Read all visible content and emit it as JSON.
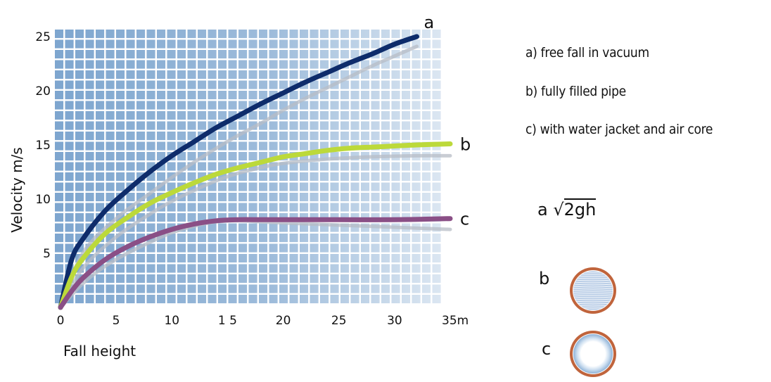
{
  "chart_data": {
    "type": "line",
    "xlabel": "Fall height",
    "ylabel": "Velocity  m/s",
    "xlim": [
      0,
      35
    ],
    "ylim": [
      0,
      26
    ],
    "x_ticks": [
      0,
      5,
      10,
      15,
      20,
      25,
      30,
      35
    ],
    "x_tick_labels": [
      "0",
      "5",
      "10",
      "1 5",
      "20",
      "25",
      "30",
      "35m"
    ],
    "y_ticks": [
      5,
      10,
      15,
      20,
      25
    ],
    "y_tick_labels": [
      "5",
      "10",
      "15",
      "20",
      "25"
    ],
    "grid": true,
    "series": [
      {
        "name": "a",
        "color": "#0e2c6b",
        "x": [
          0,
          1,
          2,
          4,
          6,
          8,
          10,
          12,
          14,
          16,
          18,
          20,
          22,
          24,
          26,
          28,
          30,
          32
        ],
        "y": [
          0,
          4.4,
          6.3,
          8.9,
          10.8,
          12.5,
          14.0,
          15.3,
          16.6,
          17.7,
          18.8,
          19.8,
          20.8,
          21.7,
          22.6,
          23.4,
          24.3,
          25.0
        ]
      },
      {
        "name": "b",
        "color": "#bcd93a",
        "x": [
          0,
          1,
          2,
          4,
          6,
          8,
          10,
          12,
          14,
          16,
          18,
          20,
          22,
          24,
          26,
          28,
          30,
          32,
          35
        ],
        "y": [
          0,
          2.8,
          4.5,
          6.8,
          8.3,
          9.6,
          10.6,
          11.5,
          12.3,
          12.9,
          13.4,
          13.9,
          14.2,
          14.5,
          14.7,
          14.8,
          14.9,
          15.0,
          15.1
        ]
      },
      {
        "name": "c",
        "color": "#8a4f86",
        "x": [
          0,
          1,
          2,
          4,
          6,
          8,
          10,
          12,
          14,
          16,
          18,
          20,
          25,
          30,
          35
        ],
        "y": [
          0,
          1.5,
          2.7,
          4.4,
          5.6,
          6.5,
          7.2,
          7.7,
          8.0,
          8.1,
          8.1,
          8.1,
          8.1,
          8.1,
          8.2
        ]
      }
    ],
    "shadow_series": [
      {
        "for": "a",
        "x": [
          0,
          2,
          5,
          8,
          10,
          12,
          14,
          16,
          18,
          20,
          22,
          24,
          26,
          28,
          30,
          32
        ],
        "y": [
          0,
          5.0,
          8.2,
          10.5,
          12.0,
          13.4,
          14.7,
          15.9,
          17.0,
          18.2,
          19.3,
          20.3,
          21.3,
          22.3,
          23.2,
          24.1
        ]
      },
      {
        "for": "b",
        "x": [
          0,
          2,
          5,
          8,
          10,
          12,
          14,
          16,
          18,
          20,
          24,
          28,
          32,
          35
        ],
        "y": [
          0,
          3.6,
          6.5,
          8.6,
          9.8,
          10.8,
          11.7,
          12.4,
          12.9,
          13.3,
          13.7,
          13.9,
          14.0,
          14.0
        ]
      },
      {
        "for": "c",
        "x": [
          0,
          2,
          4,
          6,
          8,
          10,
          12,
          14,
          16,
          18,
          20,
          25,
          30,
          35
        ],
        "y": [
          0,
          2.2,
          3.8,
          5.0,
          6.0,
          6.9,
          7.5,
          7.9,
          8.0,
          7.9,
          7.8,
          7.6,
          7.4,
          7.2
        ]
      }
    ]
  },
  "legend": {
    "a": "a) free fall in vacuum",
    "b": "b) fully filled pipe",
    "c": "c) with water jacket and air core"
  },
  "formula": {
    "label": "a",
    "expression": "2gh"
  },
  "diagrams": {
    "b_label": "b",
    "c_label": "c"
  },
  "colors": {
    "pipe_copper": "#c0643c",
    "grid_cell": "#7ea6cf"
  }
}
